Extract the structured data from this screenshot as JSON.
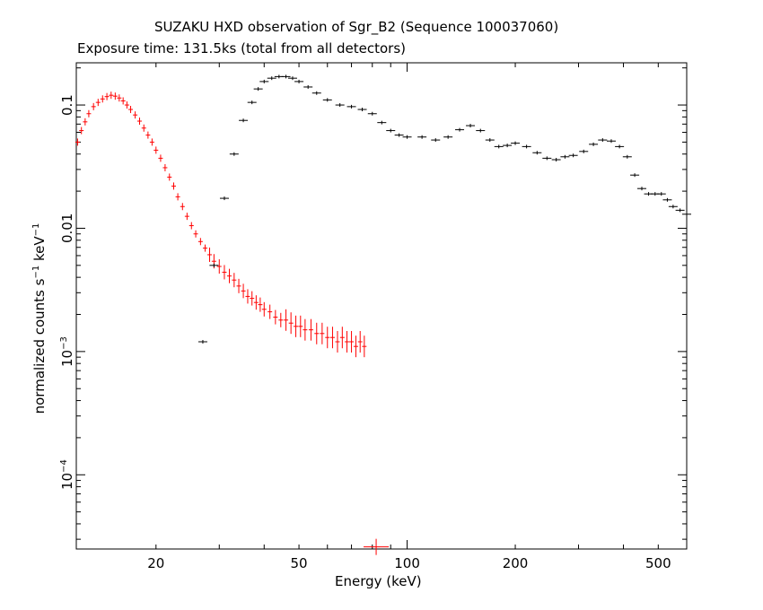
{
  "chart_data": {
    "type": "scatter",
    "title": "SUZAKU HXD observation of Sgr_B2 (Sequence 100037060)",
    "subtitle": "Exposure time: 131.5ks (total from all detectors)",
    "xlabel": "Energy (keV)",
    "ylabel_base": "normalized counts s",
    "ylabel_exp1": "−1",
    "ylabel_mid": " keV",
    "ylabel_exp2": "−1",
    "xscale": "log",
    "yscale": "log",
    "xlim": [
      12,
      600
    ],
    "ylim": [
      2.5e-05,
      0.22
    ],
    "grid": false,
    "x_ticks": [
      {
        "value": 20,
        "label": "20"
      },
      {
        "value": 50,
        "label": "50"
      },
      {
        "value": 100,
        "label": "100"
      },
      {
        "value": 200,
        "label": "200"
      },
      {
        "value": 500,
        "label": "500"
      }
    ],
    "y_ticks": [
      {
        "value": 0.1,
        "label": "0.1",
        "base": "",
        "exp": ""
      },
      {
        "value": 0.01,
        "label": "0.01",
        "base": "",
        "exp": ""
      },
      {
        "value": 0.001,
        "label": "",
        "base": "10",
        "exp": "−3"
      },
      {
        "value": 0.0001,
        "label": "",
        "base": "10",
        "exp": "−4"
      }
    ],
    "series": [
      {
        "color": "#ff0000",
        "style": "crosses",
        "points": [
          [
            12.1,
            0.05
          ],
          [
            12.4,
            0.062
          ],
          [
            12.7,
            0.073
          ],
          [
            13.0,
            0.085
          ],
          [
            13.4,
            0.097
          ],
          [
            13.8,
            0.105
          ],
          [
            14.2,
            0.112
          ],
          [
            14.6,
            0.117
          ],
          [
            15.0,
            0.12
          ],
          [
            15.4,
            0.118
          ],
          [
            15.8,
            0.114
          ],
          [
            16.2,
            0.108
          ],
          [
            16.6,
            0.1
          ],
          [
            17.0,
            0.092
          ],
          [
            17.5,
            0.083
          ],
          [
            18.0,
            0.074
          ],
          [
            18.5,
            0.065
          ],
          [
            19.0,
            0.057
          ],
          [
            19.5,
            0.05
          ],
          [
            20.0,
            0.043
          ],
          [
            20.6,
            0.037
          ],
          [
            21.2,
            0.031
          ],
          [
            21.8,
            0.026
          ],
          [
            22.4,
            0.022
          ],
          [
            23.0,
            0.018
          ],
          [
            23.7,
            0.015
          ],
          [
            24.4,
            0.0125
          ],
          [
            25.1,
            0.0105
          ],
          [
            25.8,
            0.009
          ],
          [
            26.6,
            0.0078
          ],
          [
            27.4,
            0.0069
          ],
          [
            28.2,
            0.0061
          ],
          [
            29.0,
            0.0054
          ],
          [
            30.0,
            0.0049
          ],
          [
            31.0,
            0.0044
          ],
          [
            32.0,
            0.0041
          ],
          [
            33.0,
            0.0038
          ],
          [
            34.0,
            0.0034
          ],
          [
            35.0,
            0.0031
          ],
          [
            36.0,
            0.0028
          ],
          [
            37.0,
            0.0027
          ],
          [
            38.0,
            0.0025
          ],
          [
            39.0,
            0.0024
          ],
          [
            40.0,
            0.0022
          ],
          [
            41.5,
            0.0021
          ],
          [
            43.0,
            0.0019
          ],
          [
            44.5,
            0.0018
          ],
          [
            46.0,
            0.0018
          ],
          [
            47.5,
            0.0017
          ],
          [
            49.0,
            0.0016
          ],
          [
            50.5,
            0.0016
          ],
          [
            52.0,
            0.0015
          ],
          [
            54.0,
            0.0015
          ],
          [
            56.0,
            0.0014
          ],
          [
            58.0,
            0.0014
          ],
          [
            60.0,
            0.0013
          ],
          [
            62.0,
            0.0013
          ],
          [
            64.0,
            0.0012
          ],
          [
            66.0,
            0.0013
          ],
          [
            68.0,
            0.0012
          ],
          [
            70.0,
            0.0012
          ],
          [
            72.0,
            0.0011
          ],
          [
            74.0,
            0.0012
          ],
          [
            76.0,
            0.0011
          ]
        ]
      },
      {
        "color": "#ff0000",
        "style": "large-cross",
        "points": [
          [
            82,
            2.6e-05
          ]
        ]
      },
      {
        "color": "#000000",
        "style": "crosses",
        "points": [
          [
            27,
            0.0012
          ],
          [
            29,
            0.005
          ],
          [
            31,
            0.0175
          ],
          [
            33,
            0.04
          ],
          [
            35,
            0.075
          ],
          [
            37,
            0.105
          ],
          [
            38.5,
            0.135
          ],
          [
            40,
            0.155
          ],
          [
            42,
            0.165
          ],
          [
            44,
            0.17
          ],
          [
            46,
            0.17
          ],
          [
            48,
            0.165
          ],
          [
            50,
            0.155
          ],
          [
            53,
            0.14
          ],
          [
            56,
            0.125
          ],
          [
            60,
            0.11
          ],
          [
            65,
            0.1
          ],
          [
            70,
            0.097
          ],
          [
            75,
            0.092
          ],
          [
            80,
            0.085
          ],
          [
            85,
            0.072
          ],
          [
            90,
            0.062
          ],
          [
            95,
            0.057
          ],
          [
            100,
            0.055
          ],
          [
            110,
            0.055
          ],
          [
            120,
            0.052
          ],
          [
            130,
            0.055
          ],
          [
            140,
            0.063
          ],
          [
            150,
            0.068
          ],
          [
            160,
            0.062
          ],
          [
            170,
            0.052
          ],
          [
            180,
            0.046
          ],
          [
            190,
            0.047
          ],
          [
            200,
            0.049
          ],
          [
            215,
            0.046
          ],
          [
            230,
            0.041
          ],
          [
            245,
            0.037
          ],
          [
            260,
            0.036
          ],
          [
            275,
            0.038
          ],
          [
            290,
            0.039
          ],
          [
            310,
            0.042
          ],
          [
            330,
            0.048
          ],
          [
            350,
            0.052
          ],
          [
            370,
            0.051
          ],
          [
            390,
            0.046
          ],
          [
            410,
            0.038
          ],
          [
            430,
            0.027
          ],
          [
            450,
            0.021
          ],
          [
            470,
            0.019
          ],
          [
            490,
            0.019
          ],
          [
            510,
            0.019
          ],
          [
            530,
            0.017
          ],
          [
            550,
            0.015
          ],
          [
            575,
            0.014
          ],
          [
            600,
            0.013
          ]
        ]
      }
    ]
  }
}
